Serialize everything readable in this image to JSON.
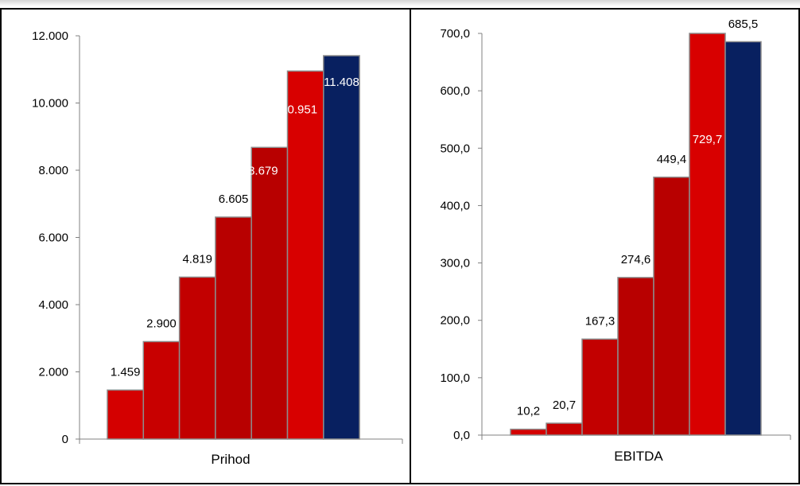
{
  "chart_data": [
    {
      "type": "bar",
      "xlabel": "Prihod",
      "ylabel": "",
      "ylim": [
        0,
        12000
      ],
      "yticks": [
        "0",
        "2.000",
        "4.000",
        "6.000",
        "8.000",
        "10.000",
        "12.000"
      ],
      "values": [
        1459,
        2900,
        4819,
        6605,
        8679,
        10951,
        11408
      ],
      "value_labels": [
        "1.459",
        "2.900",
        "4.819",
        "6.605",
        "8.679",
        "10.951",
        "11.408"
      ],
      "bar_colors": [
        "#d40000",
        "#c80000",
        "#c20000",
        "#b80000",
        "#b80000",
        "#d80000",
        "#082060"
      ],
      "grid": false,
      "legend": "none"
    },
    {
      "type": "bar",
      "xlabel": "EBITDA",
      "ylabel": "",
      "ylim": [
        0,
        700
      ],
      "yticks": [
        "0,0",
        "100,0",
        "200,0",
        "300,0",
        "400,0",
        "500,0",
        "600,0",
        "700,0"
      ],
      "values": [
        10.2,
        20.7,
        167.3,
        274.6,
        449.4,
        729.7,
        685.5
      ],
      "value_labels": [
        "10,2",
        "20,7",
        "167,3",
        "274,6",
        "449,4",
        "729,7",
        "685,5"
      ],
      "bar_colors": [
        "#d40000",
        "#c80000",
        "#c20000",
        "#b80000",
        "#b80000",
        "#d80000",
        "#082060"
      ],
      "grid": false,
      "legend": "none"
    }
  ]
}
